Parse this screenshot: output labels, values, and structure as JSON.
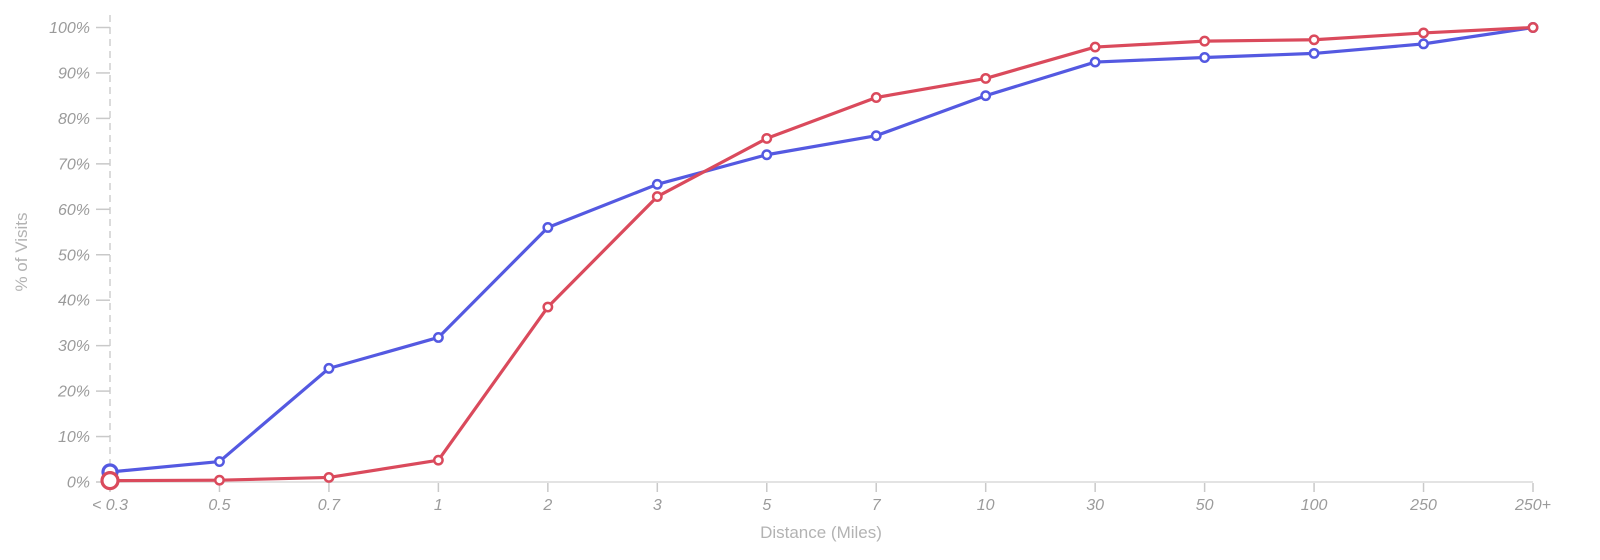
{
  "chart": {
    "title": "",
    "x_axis_title": "Distance (Miles)",
    "y_axis_title": "% of Visits"
  },
  "chart_data": {
    "type": "line",
    "title": "",
    "xlabel": "Distance (Miles)",
    "ylabel": "% of Visits",
    "categories": [
      "< 0.3",
      "0.5",
      "0.7",
      "1",
      "2",
      "3",
      "5",
      "7",
      "10",
      "30",
      "50",
      "100",
      "250",
      "250+"
    ],
    "y_tick_labels": [
      "0%",
      "10%",
      "20%",
      "30%",
      "40%",
      "50%",
      "60%",
      "70%",
      "80%",
      "90%",
      "100%"
    ],
    "ylim": [
      0,
      100
    ],
    "grid": false,
    "legend": "none",
    "axis_colors": {
      "tick_label": "#9b9b9b",
      "axis_title": "#b3b3b3",
      "x_axis_line": "#e3e3e3",
      "tick_mark": "#c9c9c9",
      "y_axis_dashed_line": "#cfcfcf"
    },
    "series": [
      {
        "name": "blue",
        "color": "#5459E1",
        "first_point_emphasized": true,
        "values": [
          2.2,
          4.5,
          25,
          31.8,
          56,
          65.5,
          72,
          76.2,
          85,
          92.4,
          93.4,
          94.3,
          96.4,
          100
        ]
      },
      {
        "name": "red",
        "color": "#DA4A5C",
        "first_point_emphasized": true,
        "values": [
          0.3,
          0.4,
          1,
          4.8,
          38.5,
          62.8,
          75.6,
          84.6,
          88.8,
          95.7,
          97,
          97.3,
          98.8,
          100
        ]
      }
    ]
  }
}
